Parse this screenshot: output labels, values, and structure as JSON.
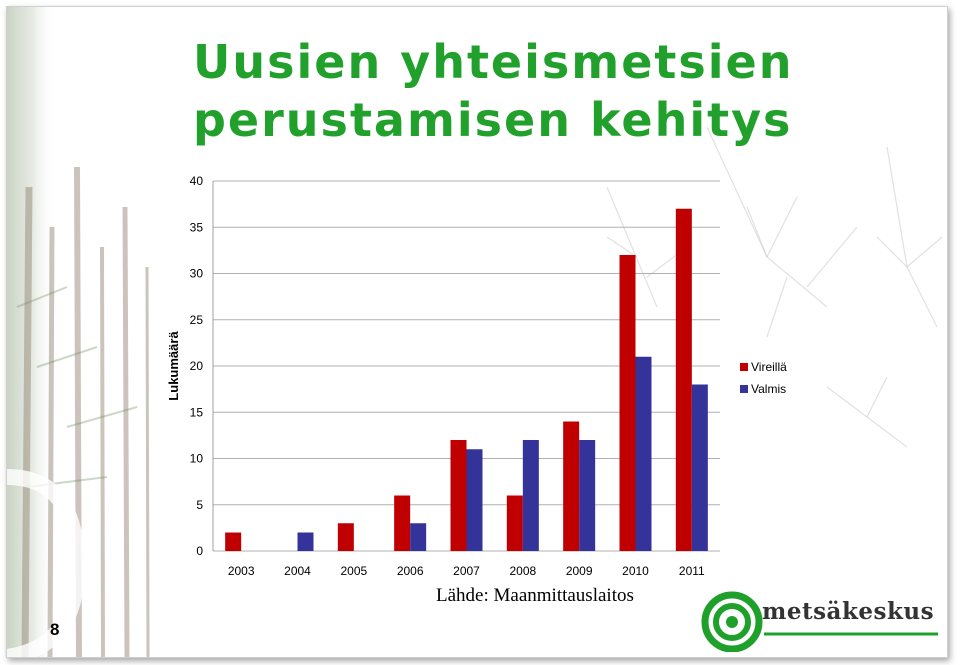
{
  "slide": {
    "title_line1": "Uusien yhteismetsien",
    "title_line2": "perustamisen kehitys",
    "page_number": "8",
    "source": "Lähde: Maanmittauslaitos",
    "logo_text": "metsäkeskus"
  },
  "colors": {
    "title": "#21a12c",
    "vireilla": "#c00000",
    "valmis": "#333399",
    "logo_green": "#1fa02a"
  },
  "chart_data": {
    "type": "bar",
    "ylabel": "Lukumäärä",
    "xlabel": "",
    "categories": [
      "2003",
      "2004",
      "2005",
      "2006",
      "2007",
      "2008",
      "2009",
      "2010",
      "2011"
    ],
    "series": [
      {
        "name": "Vireillä",
        "values": [
          2,
          0,
          3,
          6,
          12,
          6,
          14,
          32,
          37
        ]
      },
      {
        "name": "Valmis",
        "values": [
          0,
          2,
          0,
          3,
          11,
          12,
          12,
          21,
          18
        ]
      }
    ],
    "ylim": [
      0,
      40
    ],
    "yticks": [
      0,
      5,
      10,
      15,
      20,
      25,
      30,
      35,
      40
    ],
    "grid": true,
    "legend_position": "right"
  }
}
